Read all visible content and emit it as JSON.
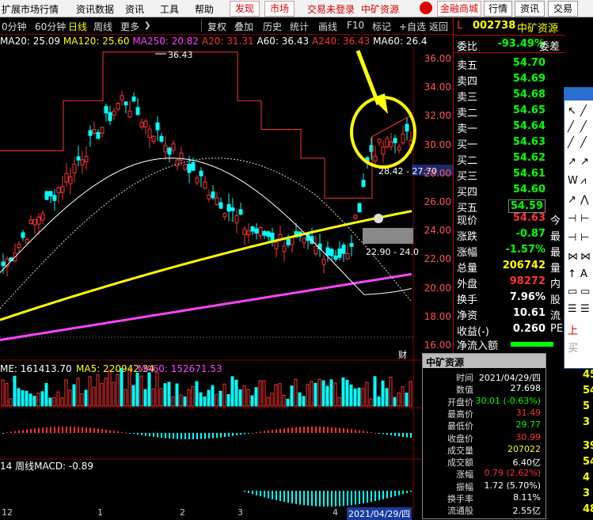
{
  "menu": {
    "items": [
      "扩展市场行情",
      "资讯数据",
      "资讯",
      "工具",
      "帮助"
    ],
    "discover": "发现",
    "market": "市场",
    "trade_status": "交易未登录",
    "stock_name": "中矿资源",
    "finance_mall": "金融商城",
    "quotes": "行情",
    "news": "资讯",
    "trade": "交易"
  },
  "toolbar": {
    "items": [
      "0分钟",
      "60分钟",
      "日线",
      "周线",
      "更多"
    ],
    "actions": [
      "复权",
      "叠加",
      "历史",
      "统计",
      "画线",
      "F10",
      "标记",
      "+自选",
      "返回"
    ]
  },
  "ma_legend": [
    {
      "text": "MA20: 25.09",
      "color": "#ffffff"
    },
    {
      "text": "MA120: 25.60",
      "color": "#ffff00"
    },
    {
      "text": "MA250: 20.82",
      "color": "#ff44ff"
    },
    {
      "text": "A20: 31.31",
      "color": "#ff3333"
    },
    {
      "text": "A60: 36.43",
      "color": "#ffffff"
    },
    {
      "text": "A240: 36.43",
      "color": "#ff3333"
    },
    {
      "text": "MA60: 26.4",
      "color": "#ffffff"
    }
  ],
  "price_axis": [
    "36.00",
    "34.00",
    "32.00",
    "30.00",
    "28.00",
    "26.00",
    "24.00",
    "22.00",
    "20.00",
    "18.00",
    "16.00"
  ],
  "chart_annotations": {
    "high": "36.43",
    "mid_label": "28.42 - 27.70",
    "low_label": "22.90 - 24.0",
    "cai": "财"
  },
  "volume": {
    "label_vol": "ME: 161413.70",
    "label_ma5": "MA5: 220942.34",
    "label_ma60": "MA60: 152671.53"
  },
  "macd": {
    "label": "14 周线MACD: -0.89"
  },
  "date_axis": [
    "12",
    "1",
    "2",
    "3",
    "4"
  ],
  "date_current": "2021/04/29/四",
  "quote": {
    "code": "002738",
    "name": "中矿资源",
    "weibi_label": "委比",
    "weibi_value": "-93.49%",
    "weicha_label": "委差",
    "sell": [
      {
        "label": "卖五",
        "price": "54.70"
      },
      {
        "label": "卖四",
        "price": "54.69"
      },
      {
        "label": "卖三",
        "price": "54.68"
      },
      {
        "label": "卖二",
        "price": "54.65"
      },
      {
        "label": "卖一",
        "price": "54.64"
      }
    ],
    "buy": [
      {
        "label": "买一",
        "price": "54.63"
      },
      {
        "label": "买二",
        "price": "54.62"
      },
      {
        "label": "买三",
        "price": "54.61"
      },
      {
        "label": "买四",
        "price": "54.60"
      },
      {
        "label": "买五",
        "price": "54.59"
      }
    ],
    "stats": [
      {
        "label": "现价",
        "value": "54.63",
        "extra": "今",
        "color": "#ff3333"
      },
      {
        "label": "涨跌",
        "value": "-0.87",
        "extra": "最",
        "color": "#00ff00"
      },
      {
        "label": "涨幅",
        "value": "-1.57%",
        "extra": "最",
        "color": "#00ff00"
      },
      {
        "label": "总量",
        "value": "206742",
        "extra": "量",
        "color": "#ffff00"
      },
      {
        "label": "外盘",
        "value": "98272",
        "extra": "内",
        "color": "#ff3333"
      }
    ],
    "stats2": [
      {
        "label": "换手",
        "value": "7.96%",
        "extra": "股",
        "color": "#ffffff"
      },
      {
        "label": "净资",
        "value": "10.61",
        "extra": "流",
        "color": "#ffffff"
      },
      {
        "label": "收益(-)",
        "value": "0.260",
        "extra": "PE",
        "color": "#ffffff"
      }
    ],
    "net_inflow": "净流入额"
  },
  "info": {
    "title": "中矿资源",
    "rows": [
      {
        "label": "时间",
        "value": "2021/04/29/四",
        "color": "#ffffff"
      },
      {
        "label": "数值",
        "value": "27.698",
        "color": "#ffffff"
      },
      {
        "label": "开盘价",
        "value": "30.01 (-0.63%)",
        "color": "#00ff00"
      },
      {
        "label": "最高价",
        "value": "31.49",
        "color": "#ff3333"
      },
      {
        "label": "最低价",
        "value": "29.77",
        "color": "#00ff00"
      },
      {
        "label": "收盘价",
        "value": "30.99",
        "color": "#ff3333"
      },
      {
        "label": "成交量",
        "value": "207022",
        "color": "#ffff00"
      },
      {
        "label": "成交额",
        "value": "6.40亿",
        "color": "#ffffff"
      },
      {
        "label": "涨幅",
        "value": "0.79 (2.62%)",
        "color": "#ff3333"
      },
      {
        "label": "振幅",
        "value": "1.72 (5.70%)",
        "color": "#ffffff"
      },
      {
        "label": "换手率",
        "value": "8.11%",
        "color": "#ffffff"
      },
      {
        "label": "流通股",
        "value": "2.55亿",
        "color": "#ffffff"
      }
    ]
  },
  "far_right": [
    "45",
    "54",
    "5",
    "3",
    "39",
    "54",
    "4",
    "3",
    "48",
    "3"
  ],
  "toolbox_icons": [
    "cursor-icon",
    "line-icon",
    "wave-icon",
    "text-icon",
    "up-arrow-icon"
  ],
  "toolbox_labels": {
    "up": "上",
    "buy": "买"
  },
  "colors": {
    "up": "#ff3333",
    "down": "#00ffff",
    "ma120": "#ffff00",
    "ma250": "#ff44ff"
  }
}
